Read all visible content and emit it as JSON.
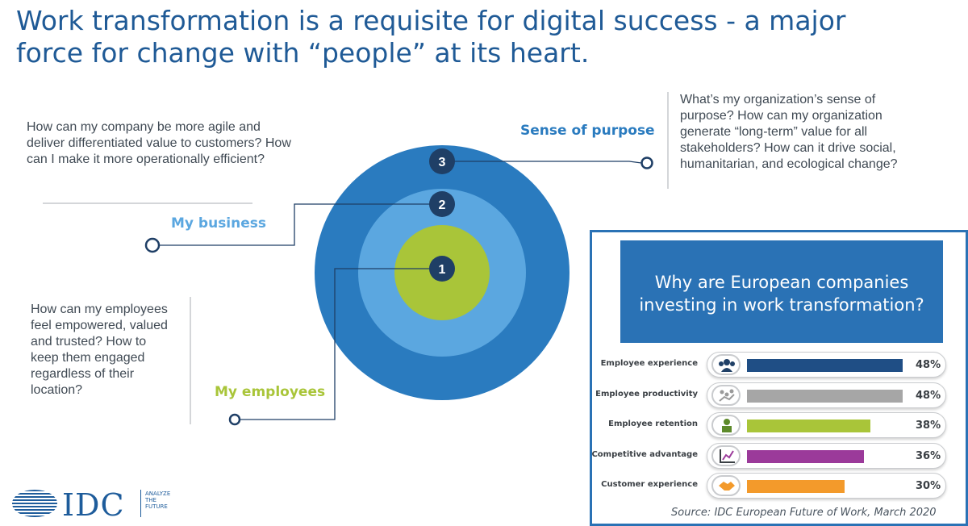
{
  "title": "Work transformation is a requisite for digital success - a major force for change with “people” at its heart.",
  "diagram": {
    "rings": [
      {
        "number": "3",
        "label": "Sense of purpose",
        "color": "#2a7bbf",
        "question": "What’s my organization’s sense of purpose?  How can my organization generate “long-term” value for all stakeholders? How can it drive social, humanitarian, and ecological change?"
      },
      {
        "number": "2",
        "label": "My business",
        "color": "#5ba7e0",
        "question": "How can my company be more agile and deliver differentiated value to customers? How can I make it more operationally efficient?"
      },
      {
        "number": "1",
        "label": "My employees",
        "color": "#a9c539",
        "question": "How can my employees feel empowered, valued and trusted? How to keep them engaged regardless of their location?"
      }
    ]
  },
  "panel": {
    "title": "Why are European companies investing in work transformation?",
    "source": "Source: IDC European Future of Work, March 2020"
  },
  "chart_data": {
    "type": "bar",
    "title": "Why are European companies investing in work transformation?",
    "categories": [
      "Employee experience",
      "Employee productivity",
      "Employee retention",
      "Competitive advantage",
      "Customer experience"
    ],
    "values": [
      48,
      48,
      38,
      36,
      30
    ],
    "value_labels": [
      "48%",
      "48%",
      "38%",
      "36%",
      "30%"
    ],
    "colors": [
      "#1f4e85",
      "#a6a6a6",
      "#a9c539",
      "#9b3a9a",
      "#f39a2b"
    ],
    "icons": [
      "people-icon",
      "productivity-icon",
      "worker-icon",
      "growth-chart-icon",
      "handshake-icon"
    ],
    "xlim": [
      0,
      48
    ],
    "orientation": "horizontal"
  },
  "logo": {
    "name": "IDC",
    "tagline_1": "ANALYZE",
    "tagline_2": "THE",
    "tagline_3": "FUTURE"
  }
}
